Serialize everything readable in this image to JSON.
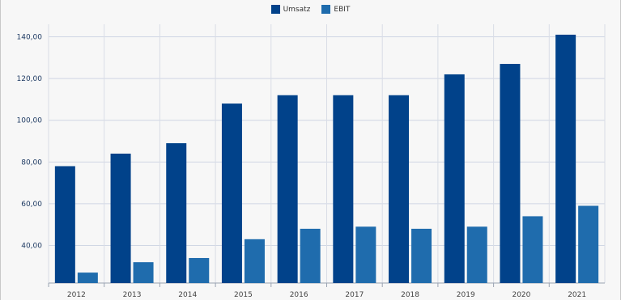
{
  "chart_data": {
    "type": "bar",
    "categories": [
      "2012",
      "2013",
      "2014",
      "2015",
      "2016",
      "2017",
      "2018",
      "2019",
      "2020",
      "2021"
    ],
    "series": [
      {
        "name": "Umsatz",
        "color": "#01428a",
        "values": [
          78,
          84,
          89,
          108,
          112,
          112,
          112,
          122,
          127,
          141
        ]
      },
      {
        "name": "EBIT",
        "color": "#1f6cad",
        "values": [
          27,
          32,
          34,
          43,
          48,
          49,
          48,
          49,
          54,
          59
        ]
      }
    ],
    "y_ticks": [
      "40,00",
      "60,00",
      "80,00",
      "100,00",
      "120,00",
      "140,00"
    ],
    "y_tick_values": [
      40,
      60,
      80,
      100,
      120,
      140
    ],
    "ylim": [
      22,
      146
    ],
    "grid": true,
    "legend_position": "top-center",
    "title": "",
    "xlabel": "",
    "ylabel": ""
  }
}
